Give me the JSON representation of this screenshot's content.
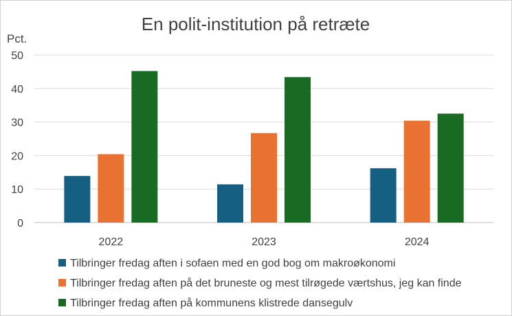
{
  "chart_data": {
    "type": "bar",
    "title": "En polit-institution på retræte",
    "ylabel": "Pct.",
    "xlabel": "",
    "ylim": [
      0,
      50
    ],
    "yticks": [
      0,
      10,
      20,
      30,
      40,
      50
    ],
    "grid": true,
    "legend_position": "bottom",
    "categories": [
      "2022",
      "2023",
      "2024"
    ],
    "series": [
      {
        "name": "Tilbringer fredag aften i sofaen med en god bog om makroøkonomi",
        "color": "#156082",
        "values": [
          13.9,
          11.4,
          16.2
        ]
      },
      {
        "name": "Tilbringer fredag aften på det bruneste og mest tilrøgede værtshus, jeg kan finde",
        "color": "#E97132",
        "values": [
          20.4,
          26.7,
          30.4
        ]
      },
      {
        "name": "Tilbringer fredag aften på kommunens klistrede dansegulv",
        "color": "#196B24",
        "values": [
          45.2,
          43.4,
          32.5
        ]
      }
    ]
  }
}
